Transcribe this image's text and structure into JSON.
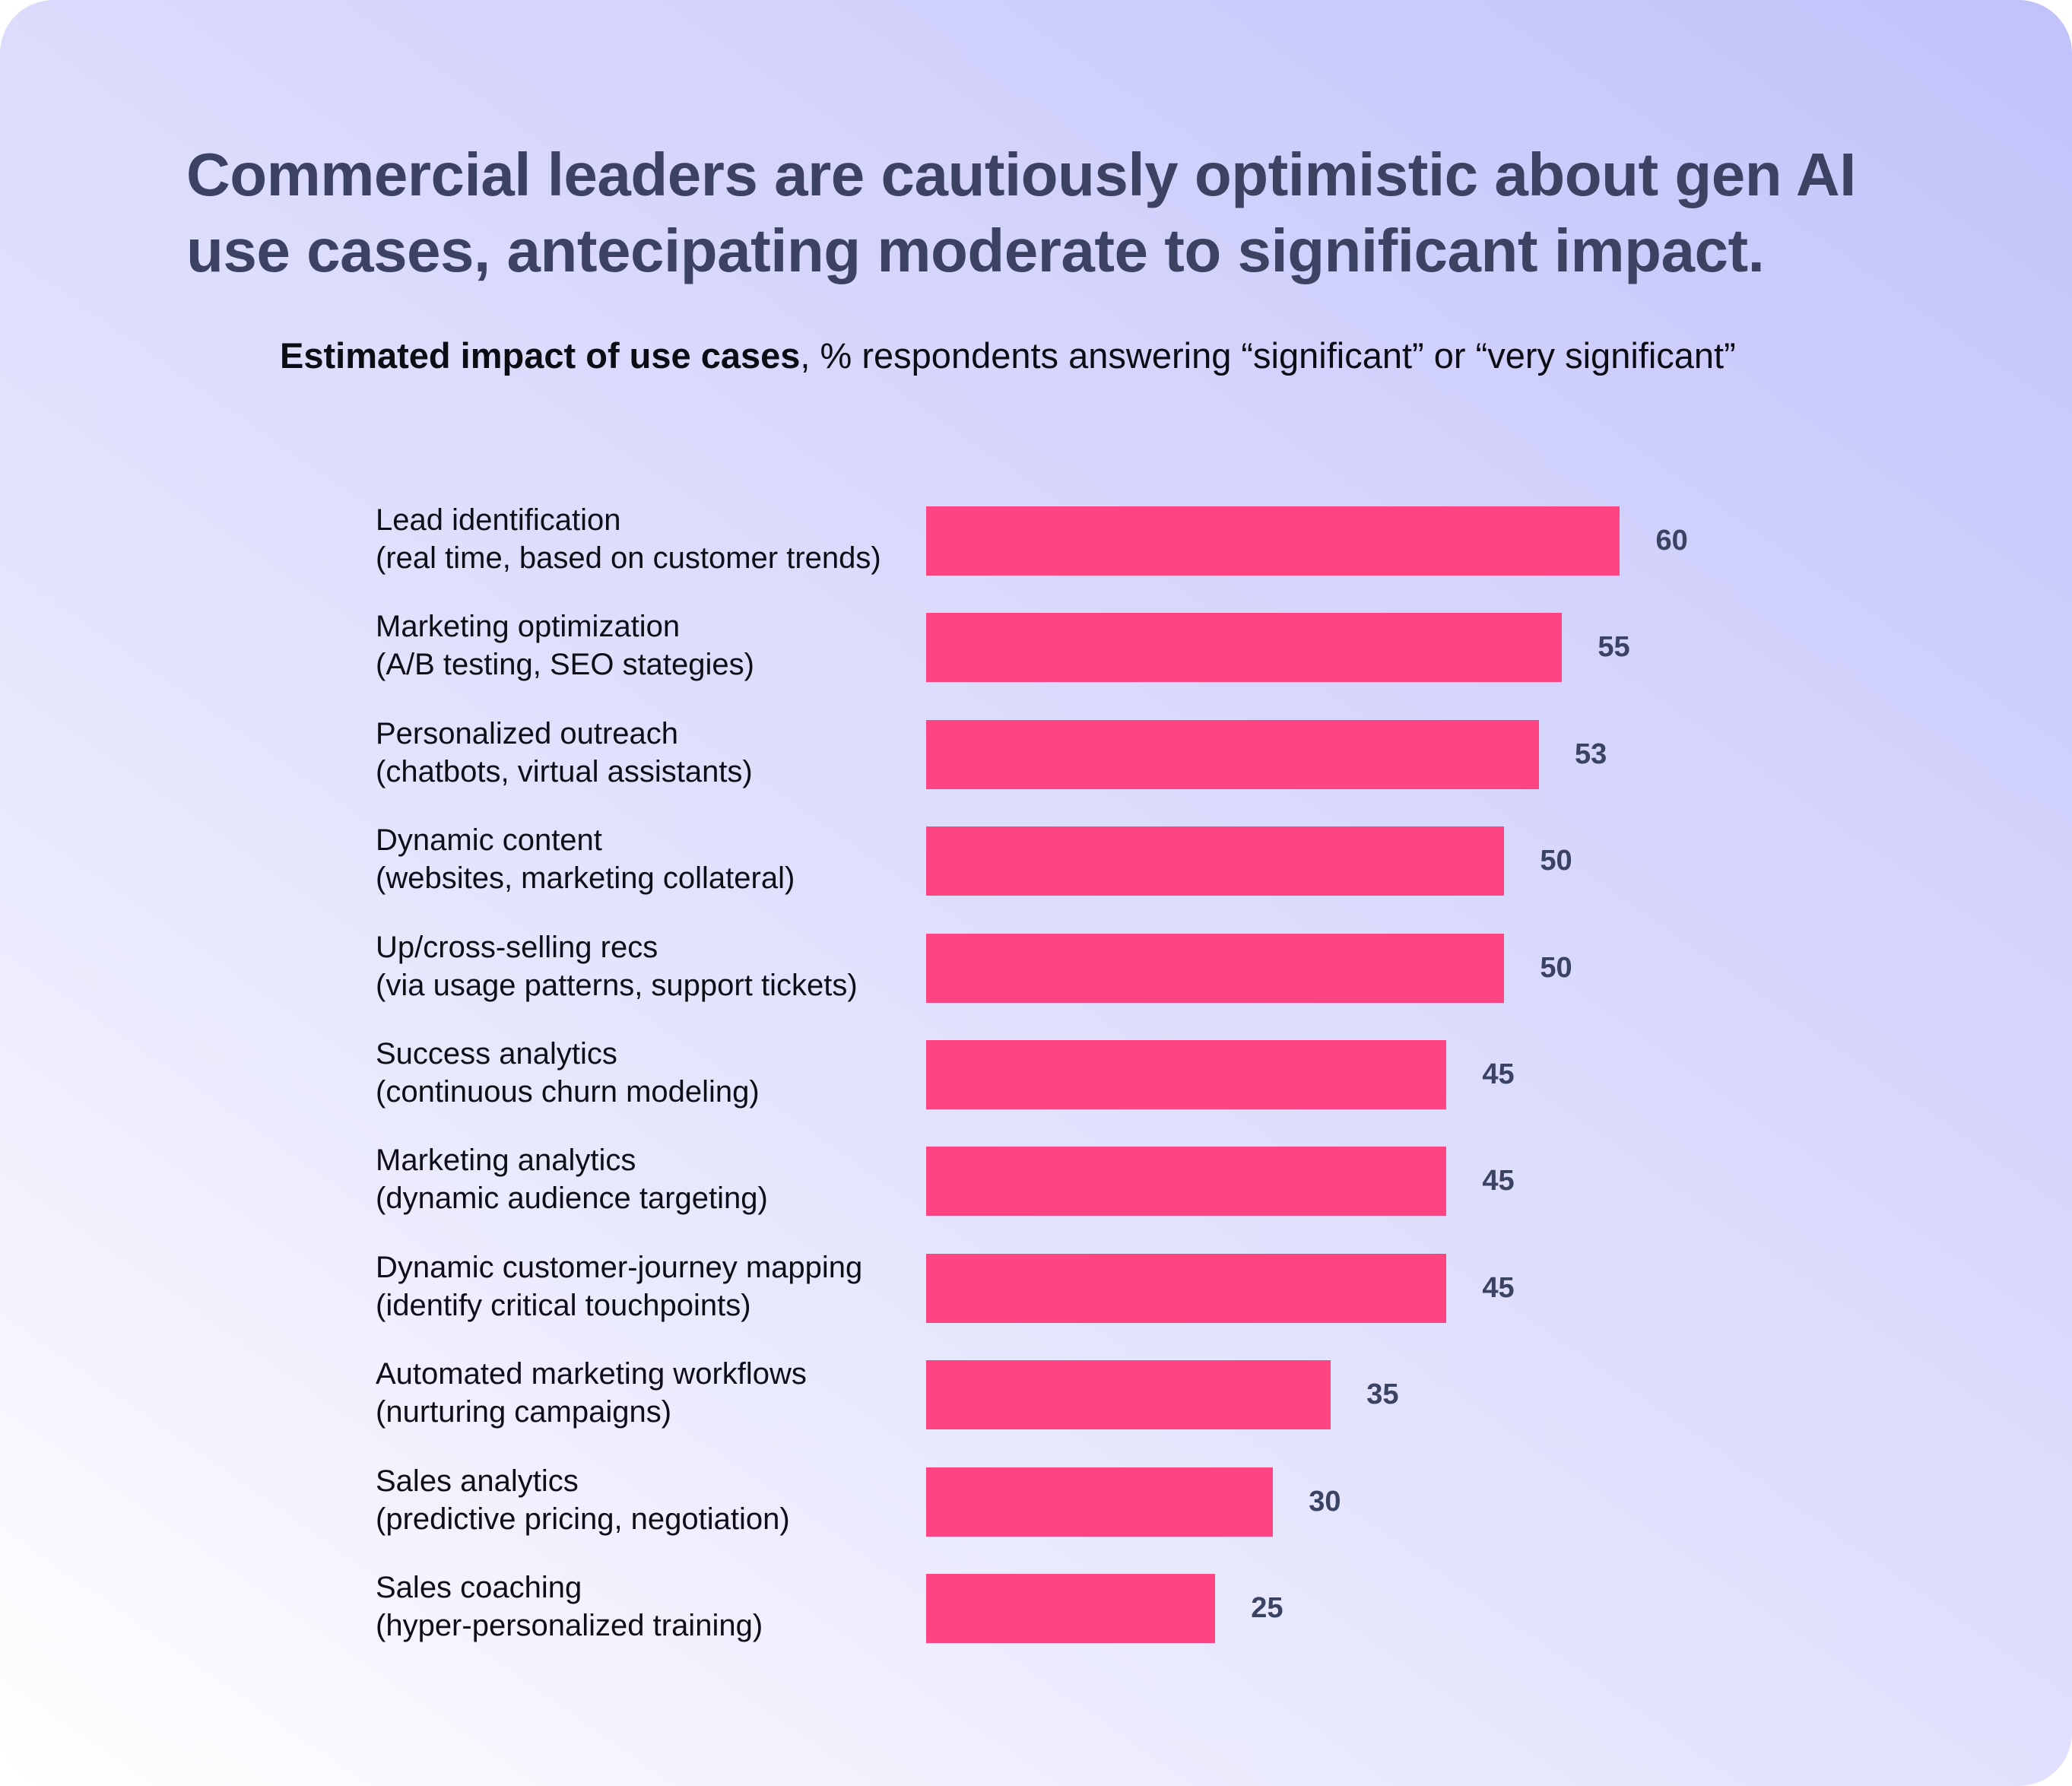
{
  "title": "Commercial leaders are cautiously optimistic about gen AI use cases, antecipating moderate to significant impact.",
  "subtitle": {
    "bold": "Estimated impact of use cases",
    "rest": ", % respondents answering “significant” or “very significant”"
  },
  "chart_data": {
    "type": "bar",
    "orientation": "horizontal",
    "title": "Commercial leaders are cautiously optimistic about gen AI use cases, antecipating moderate to significant impact.",
    "subtitle": "Estimated impact of use cases, % respondents answering “significant” or “very significant”",
    "categories": [
      {
        "name": "Lead identification",
        "detail": "(real time, based on customer trends)"
      },
      {
        "name": "Marketing optimization",
        "detail": "(A/B testing, SEO stategies)"
      },
      {
        "name": "Personalized outreach",
        "detail": "(chatbots, virtual assistants)"
      },
      {
        "name": "Dynamic content",
        "detail": "(websites, marketing collateral)"
      },
      {
        "name": "Up/cross-selling recs",
        "detail": "(via usage patterns, support tickets)"
      },
      {
        "name": "Success analytics",
        "detail": "(continuous churn modeling)"
      },
      {
        "name": "Marketing analytics",
        "detail": "(dynamic audience targeting)"
      },
      {
        "name": "Dynamic customer-journey mapping",
        "detail": "(identify critical touchpoints)"
      },
      {
        "name": "Automated marketing workflows",
        "detail": "(nurturing campaigns)"
      },
      {
        "name": "Sales analytics",
        "detail": "(predictive pricing, negotiation)"
      },
      {
        "name": "Sales coaching",
        "detail": "(hyper-personalized training)"
      }
    ],
    "values": [
      60,
      55,
      53,
      50,
      50,
      45,
      45,
      45,
      35,
      30,
      25
    ],
    "xlim": [
      0,
      60
    ],
    "grid": false,
    "bar_color": "#fd4583",
    "value_label_color": "#3a4462"
  }
}
